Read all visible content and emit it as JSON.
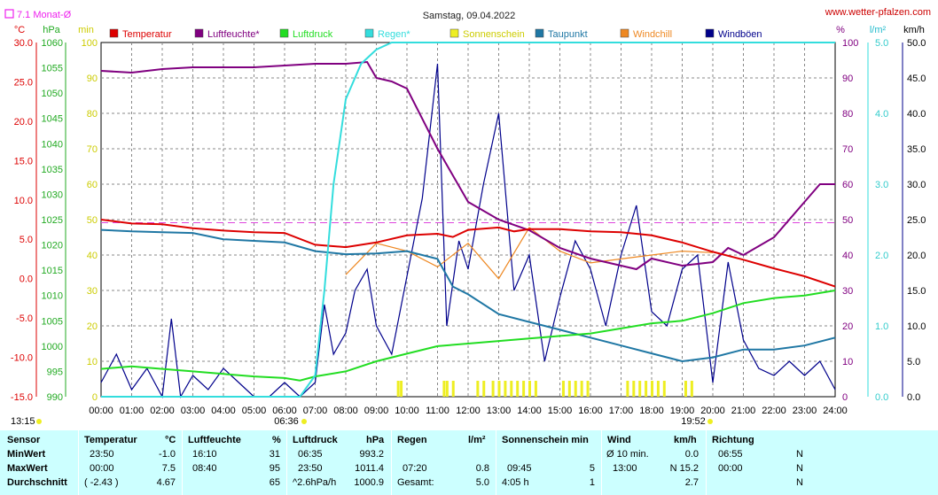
{
  "header": {
    "title": "Samstag, 09.04.2022",
    "site": "www.wetter-pfalzen.com",
    "monthly_avg": "7.1 Monat-Ø",
    "unit_labels": {
      "temp": "°C",
      "hpa": "hPa",
      "min": "min",
      "pct": "%",
      "lm2": "l/m²",
      "kmh": "km/h"
    }
  },
  "legend": [
    {
      "label": "Temperatur",
      "color": "#dd0000"
    },
    {
      "label": "Luftfeuchte*",
      "color": "#800080"
    },
    {
      "label": "Luftdruck",
      "color": "#22dd22"
    },
    {
      "label": "Regen*",
      "color": "#33dddd"
    },
    {
      "label": "Sonnenschein",
      "color": "#eeee22"
    },
    {
      "label": "Taupunkt",
      "color": "#1f77a4"
    },
    {
      "label": "Windchill",
      "color": "#ee8822"
    },
    {
      "label": "Windböen",
      "color": "#00008b"
    }
  ],
  "axes": {
    "temp_ticks": [
      "30.0",
      "25.0",
      "20.0",
      "15.0",
      "10.0",
      "5.0",
      "0.0",
      "-5.0",
      "-10.0",
      "-15.0"
    ],
    "hpa_ticks": [
      "1060",
      "1055",
      "1050",
      "1045",
      "1040",
      "1035",
      "1030",
      "1025",
      "1020",
      "1015",
      "1010",
      "1005",
      "1000",
      "995",
      "990"
    ],
    "min_ticks": [
      "100",
      "90",
      "80",
      "70",
      "60",
      "50",
      "40",
      "30",
      "20",
      "10",
      "0"
    ],
    "pct_ticks": [
      "100",
      "90",
      "80",
      "70",
      "60",
      "50",
      "40",
      "30",
      "20",
      "10",
      "0"
    ],
    "rain_ticks": [
      "5.0",
      "4.0",
      "3.0",
      "2.0",
      "1.0",
      "0.0"
    ],
    "wind_ticks": [
      "50.0",
      "45.0",
      "40.0",
      "35.0",
      "30.0",
      "25.0",
      "20.0",
      "15.0",
      "10.0",
      "5.0",
      "0.0"
    ],
    "time_ticks": [
      "00:00",
      "01:00",
      "02:00",
      "03:00",
      "04:00",
      "05:00",
      "06:00",
      "07:00",
      "08:00",
      "09:00",
      "10:00",
      "11:00",
      "12:00",
      "13:00",
      "14:00",
      "15:00",
      "16:00",
      "17:00",
      "18:00",
      "19:00",
      "20:00",
      "21:00",
      "22:00",
      "23:00",
      "24:00"
    ],
    "sunrise": "06:36",
    "sunset": "19:52",
    "daylength": "13:15"
  },
  "chart_data": {
    "type": "line",
    "title": "Samstag, 09.04.2022",
    "x_unit": "hours",
    "monthly_avg_temp": 7.1,
    "series": [
      {
        "name": "Temperatur",
        "axis": "temp_C",
        "color": "#dd0000",
        "points": [
          [
            0,
            7.5
          ],
          [
            1,
            7.0
          ],
          [
            2,
            6.9
          ],
          [
            3,
            6.4
          ],
          [
            4,
            6.1
          ],
          [
            5,
            5.9
          ],
          [
            6,
            5.8
          ],
          [
            7,
            4.3
          ],
          [
            8,
            4.0
          ],
          [
            9,
            4.6
          ],
          [
            10,
            5.5
          ],
          [
            11,
            5.7
          ],
          [
            11.5,
            5.3
          ],
          [
            12,
            6.2
          ],
          [
            13,
            6.5
          ],
          [
            13.5,
            6.0
          ],
          [
            14,
            6.3
          ],
          [
            15,
            6.3
          ],
          [
            16,
            6.0
          ],
          [
            17,
            5.9
          ],
          [
            18,
            5.5
          ],
          [
            19,
            4.6
          ],
          [
            20,
            3.4
          ],
          [
            21,
            2.4
          ],
          [
            22,
            1.3
          ],
          [
            23,
            0.3
          ],
          [
            24,
            -1.0
          ]
        ]
      },
      {
        "name": "Luftfeuchte*",
        "axis": "percent",
        "color": "#800080",
        "points": [
          [
            0,
            92
          ],
          [
            1,
            91.5
          ],
          [
            2,
            92.5
          ],
          [
            3,
            93
          ],
          [
            4,
            93
          ],
          [
            5,
            93
          ],
          [
            6,
            93.5
          ],
          [
            7,
            94
          ],
          [
            8,
            94
          ],
          [
            8.7,
            94.5
          ],
          [
            9,
            90
          ],
          [
            9.5,
            89
          ],
          [
            10,
            87
          ],
          [
            11,
            70
          ],
          [
            12,
            55
          ],
          [
            13,
            50
          ],
          [
            14,
            47
          ],
          [
            15,
            42
          ],
          [
            16,
            39
          ],
          [
            17,
            37
          ],
          [
            17.5,
            36
          ],
          [
            18,
            39
          ],
          [
            19,
            37
          ],
          [
            20,
            38
          ],
          [
            20.5,
            42
          ],
          [
            21,
            40
          ],
          [
            22,
            45
          ],
          [
            23,
            55
          ],
          [
            23.5,
            60
          ],
          [
            24,
            60
          ]
        ]
      },
      {
        "name": "Luftdruck",
        "axis": "hPa",
        "color": "#22dd22",
        "points": [
          [
            0,
            995.5
          ],
          [
            1,
            996
          ],
          [
            2,
            995.5
          ],
          [
            3,
            995
          ],
          [
            4,
            994.5
          ],
          [
            5,
            994
          ],
          [
            6,
            993.7
          ],
          [
            6.5,
            993.2
          ],
          [
            7,
            994
          ],
          [
            8,
            995
          ],
          [
            9,
            997
          ],
          [
            10,
            998.5
          ],
          [
            11,
            1000
          ],
          [
            12,
            1000.5
          ],
          [
            13,
            1001
          ],
          [
            14,
            1001.5
          ],
          [
            15,
            1002
          ],
          [
            16,
            1002.5
          ],
          [
            17,
            1003.5
          ],
          [
            18,
            1004.5
          ],
          [
            19,
            1005
          ],
          [
            20,
            1006.5
          ],
          [
            21,
            1008.5
          ],
          [
            22,
            1009.5
          ],
          [
            23,
            1010
          ],
          [
            24,
            1011
          ]
        ]
      },
      {
        "name": "Regen*",
        "axis": "l/m2",
        "color": "#33dddd",
        "points": [
          [
            0,
            0
          ],
          [
            6.5,
            0
          ],
          [
            7.0,
            0.3
          ],
          [
            7.3,
            1.5
          ],
          [
            7.6,
            3.0
          ],
          [
            8.0,
            4.2
          ],
          [
            8.5,
            4.7
          ],
          [
            9.0,
            4.9
          ],
          [
            9.5,
            5.0
          ],
          [
            24,
            5.0
          ]
        ]
      },
      {
        "name": "Taupunkt",
        "axis": "temp_C",
        "color": "#1f77a4",
        "points": [
          [
            0,
            6.2
          ],
          [
            1,
            6.0
          ],
          [
            2,
            5.9
          ],
          [
            3,
            5.8
          ],
          [
            4,
            5.0
          ],
          [
            5,
            4.8
          ],
          [
            6,
            4.6
          ],
          [
            7,
            3.5
          ],
          [
            8,
            3.1
          ],
          [
            9,
            3.2
          ],
          [
            10,
            3.5
          ],
          [
            11,
            2.5
          ],
          [
            11.5,
            -1
          ],
          [
            12,
            -2
          ],
          [
            13,
            -4.5
          ],
          [
            14,
            -5.5
          ],
          [
            15,
            -6.5
          ],
          [
            16,
            -7.5
          ],
          [
            17,
            -8.5
          ],
          [
            18,
            -9.5
          ],
          [
            19,
            -10.5
          ],
          [
            20,
            -10
          ],
          [
            21,
            -9
          ],
          [
            22,
            -9
          ],
          [
            23,
            -8.5
          ],
          [
            24,
            -7.5
          ]
        ]
      },
      {
        "name": "Windchill",
        "axis": "temp_C",
        "color": "#ee8822",
        "points": [
          [
            8,
            0.5
          ],
          [
            9,
            4.5
          ],
          [
            10,
            3.5
          ],
          [
            11,
            1.5
          ],
          [
            12,
            4.5
          ],
          [
            13,
            0
          ],
          [
            14,
            6.5
          ],
          [
            15,
            3.5
          ],
          [
            16,
            2
          ],
          [
            17,
            2.5
          ],
          [
            18,
            3
          ],
          [
            19,
            3.5
          ],
          [
            20,
            3.3
          ]
        ]
      },
      {
        "name": "Windböen",
        "axis": "km/h",
        "color": "#00008b",
        "points": [
          [
            0,
            2
          ],
          [
            0.5,
            6
          ],
          [
            1,
            1
          ],
          [
            1.5,
            4
          ],
          [
            2,
            0
          ],
          [
            2.3,
            11
          ],
          [
            2.6,
            0
          ],
          [
            3,
            3
          ],
          [
            3.5,
            1
          ],
          [
            4,
            4
          ],
          [
            4.5,
            2
          ],
          [
            5,
            0
          ],
          [
            5.5,
            0
          ],
          [
            6,
            2
          ],
          [
            6.5,
            0
          ],
          [
            7,
            2
          ],
          [
            7.3,
            13
          ],
          [
            7.6,
            6
          ],
          [
            8,
            9
          ],
          [
            8.3,
            15
          ],
          [
            8.7,
            18
          ],
          [
            9,
            10
          ],
          [
            9.5,
            6
          ],
          [
            10,
            17
          ],
          [
            10.5,
            28
          ],
          [
            11,
            47
          ],
          [
            11.3,
            10
          ],
          [
            11.7,
            22
          ],
          [
            12,
            18
          ],
          [
            12.5,
            30
          ],
          [
            13,
            40
          ],
          [
            13.5,
            15
          ],
          [
            14,
            20
          ],
          [
            14.5,
            5
          ],
          [
            15,
            14
          ],
          [
            15.5,
            22
          ],
          [
            16,
            18
          ],
          [
            16.5,
            10
          ],
          [
            17,
            20
          ],
          [
            17.5,
            27
          ],
          [
            18,
            12
          ],
          [
            18.5,
            10
          ],
          [
            19,
            18
          ],
          [
            19.5,
            20
          ],
          [
            20,
            2
          ],
          [
            20.5,
            19
          ],
          [
            21,
            8
          ],
          [
            21.5,
            4
          ],
          [
            22,
            3
          ],
          [
            22.5,
            5
          ],
          [
            23,
            3
          ],
          [
            23.5,
            5
          ],
          [
            24,
            1
          ]
        ]
      },
      {
        "name": "Sonnenschein",
        "axis": "min",
        "color": "#eeee22",
        "bars_hours": [
          9.7,
          9.8,
          11.2,
          11.3,
          11.5,
          12.3,
          12.5,
          12.8,
          13.0,
          13.2,
          13.4,
          13.6,
          13.8,
          14.0,
          14.2,
          15.1,
          15.3,
          15.5,
          15.7,
          15.9,
          17.2,
          17.4,
          17.6,
          17.8,
          18.0,
          18.2,
          18.4,
          19.1,
          19.3
        ]
      }
    ],
    "time_range": [
      0,
      24
    ]
  },
  "summary": {
    "headers": [
      "Sensor",
      "Temperatur",
      "°C",
      "Luftfeuchte",
      "%",
      "Luftdruck",
      "hPa",
      "Regen",
      "l/m²",
      "Sonnenschein min",
      "Wind",
      "km/h",
      "Richtung"
    ],
    "rows": [
      [
        "MinWert",
        "23:50",
        "-1.0",
        "16:10",
        "31",
        "06:35",
        "993.2",
        "",
        "",
        "",
        "Ø 10 min.",
        "0.0",
        "06:55",
        "N"
      ],
      [
        "MaxWert",
        "00:00",
        "7.5",
        "08:40",
        "95",
        "23:50",
        "1011.4",
        "07:20",
        "0.8",
        "09:45",
        "5",
        "13:00",
        "N 15.2",
        "00:00",
        "N"
      ],
      [
        "Durchschnitt",
        "( -2.43 )",
        "4.67",
        "",
        "65",
        "^2.6hPa/h",
        "1000.9",
        "Gesamt:",
        "5.0",
        "4:05 h",
        "1",
        "",
        "2.7",
        "",
        "N"
      ]
    ]
  }
}
